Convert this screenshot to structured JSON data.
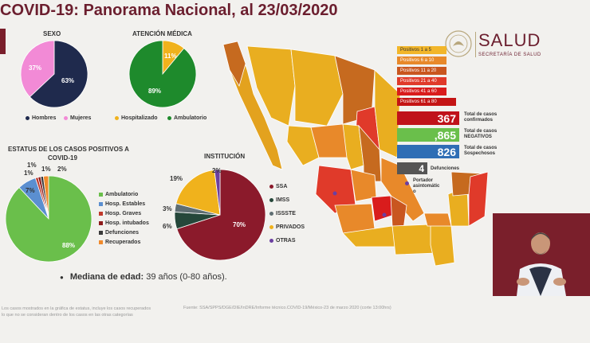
{
  "header": {
    "title": "COVID-19: Panorama Nacional, al 23/03/2020",
    "brand": "SALUD",
    "brand_sub": "SECRETARÍA DE SALUD"
  },
  "sexo": {
    "heading": "SEXO",
    "slices": [
      {
        "label": "Hombres",
        "value": 63,
        "pct": "63%",
        "color": "#1f2a4d"
      },
      {
        "label": "Mujeres",
        "value": 37,
        "pct": "37%",
        "color": "#f28ad6"
      }
    ]
  },
  "atencion": {
    "heading": "ATENCIÓN MÉDICA",
    "slices": [
      {
        "label": "Hospitalizado",
        "value": 11,
        "pct": "11%",
        "color": "#f0b21c"
      },
      {
        "label": "Ambulatorio",
        "value": 89,
        "pct": "89%",
        "color": "#1e8a2c"
      }
    ]
  },
  "estatus": {
    "heading_1": "ESTATUS DE LOS CASOS POSITIVOS A",
    "heading_2": "COVID-19",
    "slices": [
      {
        "label": "Ambulatorio",
        "value": 88,
        "pct": "88%",
        "color": "#6abf4b"
      },
      {
        "label": "Hosp. Estables",
        "value": 7,
        "pct": "7%",
        "color": "#5b8fd0"
      },
      {
        "label": "Hosp. Graves",
        "value": 1,
        "pct": "1%",
        "color": "#c0392b"
      },
      {
        "label": "Hosp. intubados",
        "value": 1,
        "pct": "1%",
        "color": "#8e1b1b"
      },
      {
        "label": "Defunciones",
        "value": 1,
        "pct": "1%",
        "color": "#3a3a3a"
      },
      {
        "label": "Recuperados",
        "value": 2,
        "pct": "2%",
        "color": "#f08a2c"
      }
    ]
  },
  "institucion": {
    "heading": "INSTITUCIÓN",
    "slices": [
      {
        "label": "SSA",
        "value": 70,
        "pct": "70%",
        "color": "#8b1a2b"
      },
      {
        "label": "IMSS",
        "value": 6,
        "pct": "6%",
        "color": "#25473a"
      },
      {
        "label": "ISSSTE",
        "value": 3,
        "pct": "3%",
        "color": "#5f6e72"
      },
      {
        "label": "PRIVADOS",
        "value": 19,
        "pct": "19%",
        "color": "#f0b21c"
      },
      {
        "label": "OTRAS",
        "value": 2,
        "pct": "2%",
        "color": "#6b3fa0"
      }
    ]
  },
  "map_legend": [
    {
      "label": "Positivos 1 a 5",
      "color": "#f2b62a"
    },
    {
      "label": "Positivos 6 a 10",
      "color": "#e8892a"
    },
    {
      "label": "Positivos 11 a 20",
      "color": "#c9561f"
    },
    {
      "label": "Positivos 21 a 40",
      "color": "#e03a2a"
    },
    {
      "label": "Positivos 41 a 60",
      "color": "#d91c1c"
    },
    {
      "label": "Positivos 61 a 80",
      "color": "#c41414"
    }
  ],
  "stats": {
    "confirmed": {
      "value": "367",
      "label_1": "Total de casos",
      "label_2": "confirmados",
      "color": "#c0121a"
    },
    "negative": {
      "value": ",865",
      "label_1": "Total de casos",
      "label_2": "NEGATIVOS",
      "color": "#6abf4b"
    },
    "suspect": {
      "value": "826",
      "label_1": "Total de casos",
      "label_2": "Sospechosos",
      "color": "#2f6eb5"
    },
    "deaths": {
      "value": "4",
      "label": "Defunciones",
      "color": "#555"
    },
    "asymptomatic": {
      "label_1": "Portador",
      "label_2": "asintomátic",
      "label_3": "o",
      "color": "#6b3fa0"
    }
  },
  "median": {
    "label": "Mediana de edad:",
    "value": "39 años (0-80 años)."
  },
  "footer": {
    "note_1": "Los casos mostrados en la gráfica de estatus, incluye los casos recuperados",
    "note_2": "lo que no se consideran dentro de los casos en las otras categorías",
    "source": "Fuente: SSA/SPPS/DGE/DIE/InDRE/Informe técnico.COVID-19/México-23 de marzo 2020 (corte 13:00hrs)"
  }
}
